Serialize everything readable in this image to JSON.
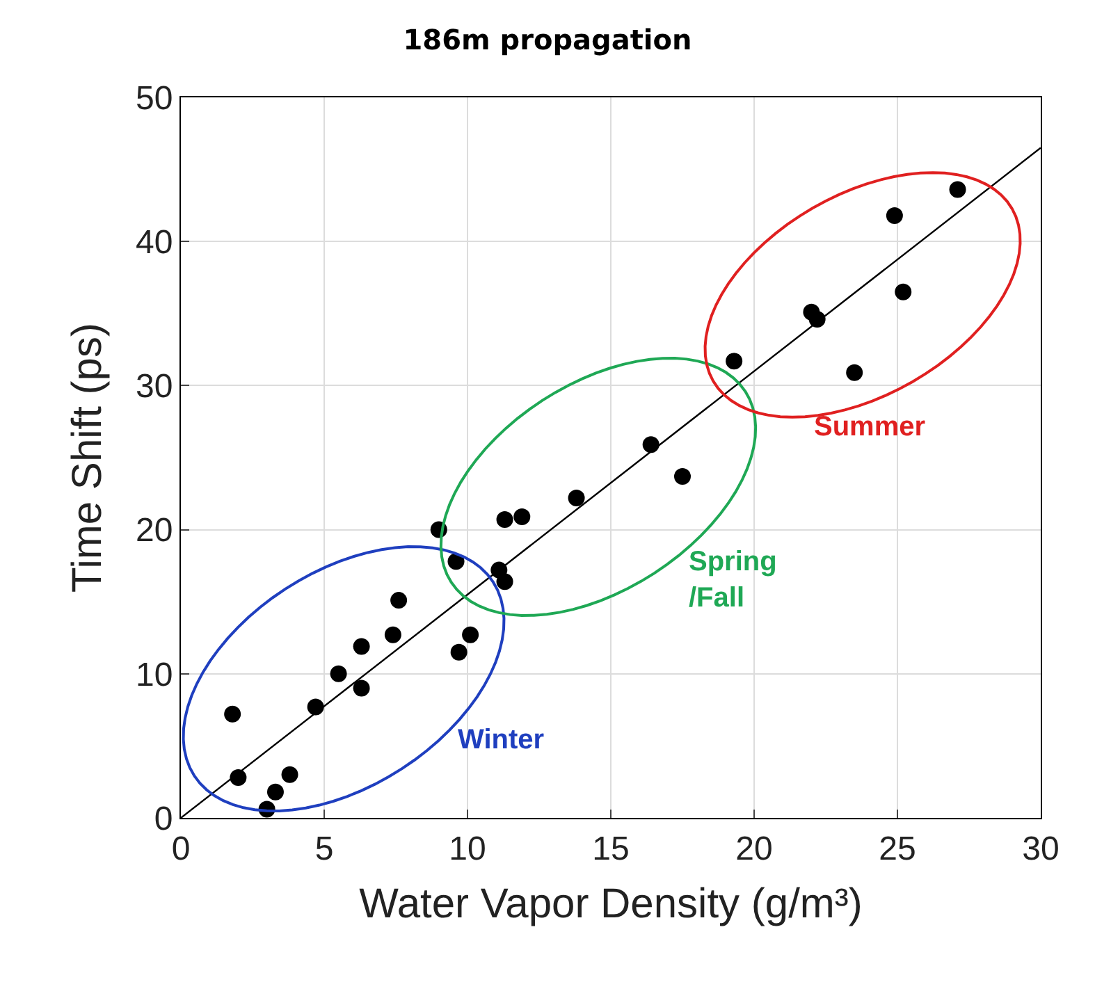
{
  "chart_data": {
    "type": "scatter",
    "title": "186m propagation",
    "xlabel": "Water Vapor Density (g/m³)",
    "ylabel": "Time Shift (ps)",
    "xlim": [
      0,
      30
    ],
    "xticks": [
      0,
      5,
      10,
      15,
      20,
      25,
      30
    ],
    "ylim": [
      0,
      50
    ],
    "yticks": [
      0,
      10,
      20,
      30,
      40,
      50
    ],
    "grid": true,
    "series": [
      {
        "marker": "circle",
        "color": "#000000",
        "x": [
          1.8,
          2.0,
          3.0,
          3.3,
          3.8,
          4.7,
          5.5,
          6.3,
          6.3,
          7.4,
          7.6,
          9.0,
          9.6,
          9.7,
          10.1,
          11.1,
          11.3,
          11.3,
          11.9,
          13.8,
          16.4,
          17.5,
          19.3,
          22.0,
          22.2,
          23.5,
          24.9,
          25.2,
          27.1
        ],
        "values": [
          7.2,
          2.8,
          0.6,
          1.8,
          3.0,
          7.7,
          10.0,
          11.9,
          9.0,
          12.7,
          15.1,
          20.0,
          17.8,
          11.5,
          12.7,
          17.2,
          16.4,
          20.7,
          20.9,
          22.2,
          25.9,
          23.7,
          31.7,
          35.1,
          34.6,
          30.9,
          41.8,
          36.5,
          43.6
        ]
      },
      {
        "type": "line",
        "marker": "none",
        "color": "#000000",
        "x": [
          0,
          30
        ],
        "values": [
          0,
          46.5
        ]
      }
    ],
    "annotations": [
      "Winter",
      "Spring\n/Fall",
      "Summer"
    ]
  }
}
